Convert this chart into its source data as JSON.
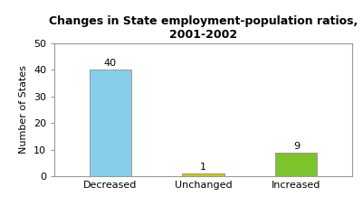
{
  "categories": [
    "Decreased",
    "Unchanged",
    "Increased"
  ],
  "values": [
    40,
    1,
    9
  ],
  "bar_colors": [
    "#87CEEB",
    "#CCCC00",
    "#7DC42C"
  ],
  "title": "Changes in State employment-population ratios,\n2001-2002",
  "ylabel": "Number of States",
  "ylim": [
    0,
    50
  ],
  "yticks": [
    0,
    10,
    20,
    30,
    40,
    50
  ],
  "title_fontsize": 9,
  "label_fontsize": 8,
  "tick_fontsize": 8,
  "annot_fontsize": 8,
  "bar_width": 0.45,
  "background_color": "#ffffff",
  "border_color": "#999999"
}
